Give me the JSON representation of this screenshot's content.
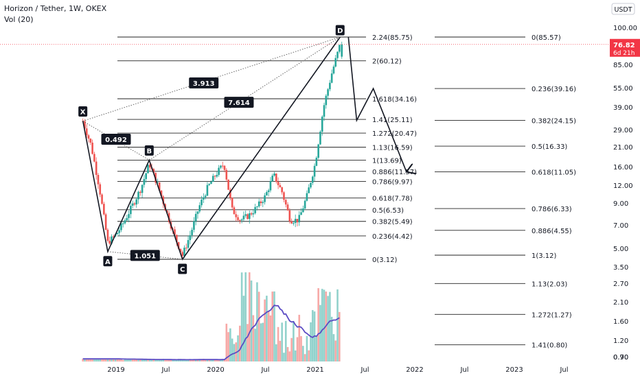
{
  "header": {
    "title": "Horizon / Tether, 1W, OKEX",
    "volume_label": "Vol (20)"
  },
  "price_scale": {
    "currency_button": "USDT",
    "top_tick": "100.00",
    "ticks": [
      "85.00",
      "55.00",
      "39.00",
      "29.00",
      "21.00",
      "16.00",
      "12.00",
      "9.00",
      "7.00",
      "5.00",
      "3.50",
      "2.70",
      "2.10",
      "1.60",
      "1.20",
      "0.90",
      "0.70"
    ],
    "last_price": "76.82",
    "countdown": "6d 21h",
    "accent_color": "#f23645"
  },
  "time_axis": {
    "labels": [
      "2019",
      "Jul",
      "2020",
      "Jul",
      "2021",
      "Jul",
      "2022",
      "Jul",
      "2023",
      "Jul"
    ]
  },
  "fib_left": [
    "2.24(85.75)",
    "2(60.12)",
    "1.618(34.16)",
    "1.41(25.11)",
    "1.272(20.47)",
    "1.13(16.59)",
    "1(13.69)",
    "0.886(11.57)",
    "0.786(9.97)",
    "0.618(7.78)",
    "0.5(6.53)",
    "0.382(5.49)",
    "0.236(4.42)",
    "0(3.12)"
  ],
  "fib_right": [
    "0(85.57)",
    "0.236(39.16)",
    "0.382(24.15)",
    "0.5(16.33)",
    "0.618(11.05)",
    "0.786(6.33)",
    "0.886(4.55)",
    "1(3.12)",
    "1.13(2.03)",
    "1.272(1.27)",
    "1.41(0.80)"
  ],
  "pattern": {
    "points": [
      "X",
      "A",
      "B",
      "C",
      "D"
    ],
    "ratios": [
      "0.492",
      "1.051",
      "3.913",
      "7.614"
    ]
  },
  "chart_data": {
    "type": "candlestick",
    "title": "Horizon / Tether, 1W, OKEX",
    "scale": "log",
    "x_range": [
      "2018-09",
      "2023-09"
    ],
    "y_range": [
      0.7,
      100
    ],
    "pattern_points": [
      {
        "label": "X",
        "date": "2018-09",
        "price": 24.5
      },
      {
        "label": "A",
        "date": "2018-12",
        "price": 3.5
      },
      {
        "label": "B",
        "date": "2019-05",
        "price": 13.69
      },
      {
        "label": "C",
        "date": "2019-09",
        "price": 3.12
      },
      {
        "label": "D",
        "date": "2021-04",
        "price": 85.75
      }
    ],
    "projection_path": [
      {
        "date": "2021-05",
        "price": 85.57
      },
      {
        "date": "2021-06",
        "price": 24.15
      },
      {
        "date": "2021-08",
        "price": 39.16
      },
      {
        "date": "2021-12",
        "price": 11.05
      }
    ],
    "close_path": [
      {
        "date": "2018-09",
        "price": 24.5
      },
      {
        "date": "2018-10",
        "price": 17
      },
      {
        "date": "2018-11",
        "price": 9
      },
      {
        "date": "2018-12",
        "price": 4.0
      },
      {
        "date": "2019-01",
        "price": 4.5
      },
      {
        "date": "2019-02",
        "price": 5.5
      },
      {
        "date": "2019-03",
        "price": 7
      },
      {
        "date": "2019-04",
        "price": 9
      },
      {
        "date": "2019-05",
        "price": 13
      },
      {
        "date": "2019-06",
        "price": 9.5
      },
      {
        "date": "2019-07",
        "price": 6.5
      },
      {
        "date": "2019-08",
        "price": 4.5
      },
      {
        "date": "2019-09",
        "price": 3.3
      },
      {
        "date": "2019-10",
        "price": 4.6
      },
      {
        "date": "2019-11",
        "price": 6.8
      },
      {
        "date": "2019-12",
        "price": 9
      },
      {
        "date": "2020-01",
        "price": 11
      },
      {
        "date": "2020-02",
        "price": 13
      },
      {
        "date": "2020-03",
        "price": 6.5
      },
      {
        "date": "2020-04",
        "price": 5.6
      },
      {
        "date": "2020-05",
        "price": 6
      },
      {
        "date": "2020-06",
        "price": 6.8
      },
      {
        "date": "2020-07",
        "price": 8
      },
      {
        "date": "2020-08",
        "price": 11
      },
      {
        "date": "2020-09",
        "price": 8.5
      },
      {
        "date": "2020-10",
        "price": 5.6
      },
      {
        "date": "2020-11",
        "price": 5.6
      },
      {
        "date": "2020-12",
        "price": 8
      },
      {
        "date": "2021-01",
        "price": 13
      },
      {
        "date": "2021-02",
        "price": 30
      },
      {
        "date": "2021-03",
        "price": 50
      },
      {
        "date": "2021-04",
        "price": 76.82
      }
    ],
    "last_price": 76.82
  }
}
